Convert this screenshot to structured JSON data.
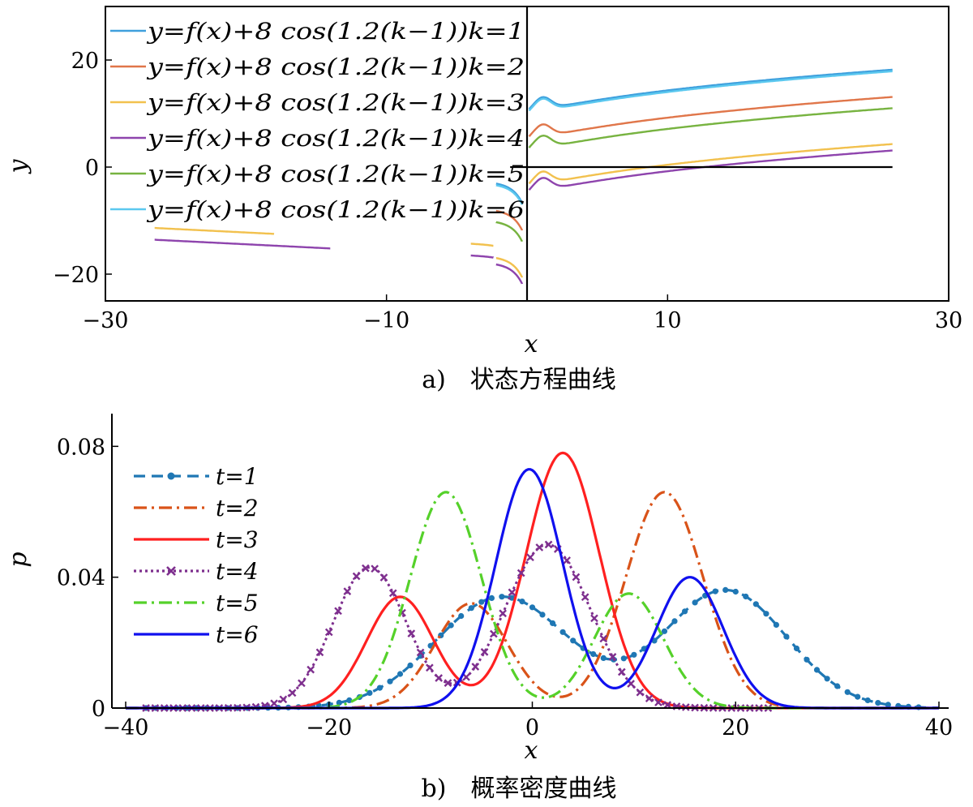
{
  "chart_data": [
    {
      "type": "line",
      "caption": "a)　状态方程曲线",
      "xlabel": "x",
      "ylabel": "y",
      "xlim": [
        -30,
        30
      ],
      "ylim": [
        -25,
        30
      ],
      "xticks": [
        "−30",
        "−10",
        "10",
        "30"
      ],
      "xtick_values": [
        -30,
        -10,
        10,
        30
      ],
      "yticks": [
        "−20",
        "0",
        "20"
      ],
      "ytick_values": [
        -20,
        0,
        20
      ],
      "legend_position": "top-left",
      "reference_lines": [
        "x=0",
        "y=0"
      ],
      "series": [
        {
          "name": "y=f(x)+8 cos(1.2(k−1))k=1",
          "color": "#3fa0dd",
          "offset": 8.0
        },
        {
          "name": "y=f(x)+8 cos(1.2(k−1))k=2",
          "color": "#e0764a",
          "offset": 2.9
        },
        {
          "name": "y=f(x)+8 cos(1.2(k−1))k=3",
          "color": "#f2c14e",
          "offset": -5.9
        },
        {
          "name": "y=f(x)+8 cos(1.2(k−1))k=4",
          "color": "#8e44ad",
          "offset": -7.1
        },
        {
          "name": "y=f(x)+8 cos(1.2(k−1))k=5",
          "color": "#77b340",
          "offset": 0.8
        },
        {
          "name": "y=f(x)+8 cos(1.2(k−1))k=6",
          "color": "#5bc8ef",
          "offset": 7.7
        }
      ]
    },
    {
      "type": "line",
      "caption": "b)　概率密度曲线",
      "xlabel": "x",
      "ylabel": "p",
      "xlim": [
        -40,
        40
      ],
      "ylim": [
        0,
        0.09
      ],
      "xticks": [
        "−40",
        "−20",
        "0",
        "20",
        "40"
      ],
      "xtick_values": [
        -40,
        -20,
        0,
        20,
        40
      ],
      "yticks": [
        "0",
        "0.04",
        "0.08"
      ],
      "ytick_values": [
        0,
        0.04,
        0.08
      ],
      "legend_position": "top-left",
      "series": [
        {
          "name": "t=1",
          "color": "#1f77b4",
          "style": "dashed-dots",
          "components": [
            [
              -3,
              0.034,
              6.5
            ],
            [
              19,
              0.036,
              6.0
            ]
          ]
        },
        {
          "name": "t=2",
          "color": "#d95319",
          "style": "dashdot",
          "components": [
            [
              -6,
              0.032,
              3.6
            ],
            [
              13,
              0.066,
              3.8
            ]
          ]
        },
        {
          "name": "t=3",
          "color": "#ff2020",
          "style": "solid",
          "components": [
            [
              -13,
              0.034,
              3.3
            ],
            [
              3,
              0.078,
              3.6
            ]
          ]
        },
        {
          "name": "t=4",
          "color": "#7e2f8e",
          "style": "dotted-crosses",
          "components": [
            [
              -16,
              0.043,
              3.6
            ],
            [
              1.5,
              0.05,
              4.2
            ]
          ]
        },
        {
          "name": "t=5",
          "color": "#55d12a",
          "style": "dashdot",
          "components": [
            [
              -8.5,
              0.066,
              3.5
            ],
            [
              9.5,
              0.035,
              3.4
            ]
          ]
        },
        {
          "name": "t=6",
          "color": "#1010ee",
          "style": "solid",
          "components": [
            [
              -0.3,
              0.073,
              3.3
            ],
            [
              15.5,
              0.04,
              3.3
            ]
          ]
        }
      ]
    }
  ]
}
